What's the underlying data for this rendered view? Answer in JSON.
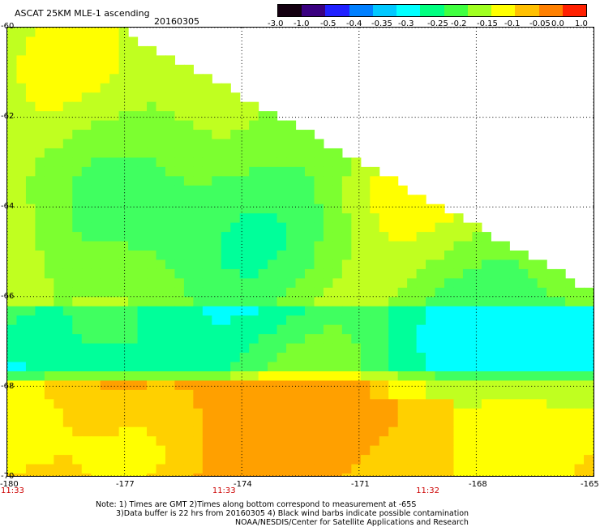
{
  "header": {
    "product": "ASCAT 25KM MLE-1 ascending",
    "date": "20160305"
  },
  "colorbar": {
    "labels": [
      "-3.0",
      "-1.0",
      "-0.5",
      "-0.4",
      "-0.35",
      "-0.3",
      "-0.25",
      "-0.2",
      "-0.15",
      "-0.1",
      "-0.05",
      "0.0",
      "1.0"
    ],
    "colors": [
      "#140010",
      "#3a0080",
      "#2020ff",
      "#0080ff",
      "#00c8ff",
      "#00ffff",
      "#00ff80",
      "#40ff40",
      "#a0ff20",
      "#ffff00",
      "#ffc000",
      "#ff8000",
      "#ff2000"
    ]
  },
  "map": {
    "lat_labels": [
      "-60",
      "-62",
      "-64",
      "-66",
      "-68",
      "-70"
    ],
    "lon_labels": [
      "-180",
      "-177",
      "-174",
      "-171",
      "-168",
      "-165"
    ],
    "lat_range": [
      -70,
      -60
    ],
    "lon_range": [
      -180,
      -165
    ],
    "time_labels": [
      {
        "text": "11:33",
        "lon": -180
      },
      {
        "text": "11:33",
        "lon": -174.5
      },
      {
        "text": "11:32",
        "lon": -169.3
      }
    ]
  },
  "notes": {
    "line1": "Note: 1) Times are GMT 2)Times along bottom correspond to measurement at -65S",
    "line2": "3)Data buffer is 22 hrs from 20160305 4) Black wind barbs indicate possible contamination",
    "line3": "NOAA/NESDIS/Center for Satellite Applications and Research"
  }
}
